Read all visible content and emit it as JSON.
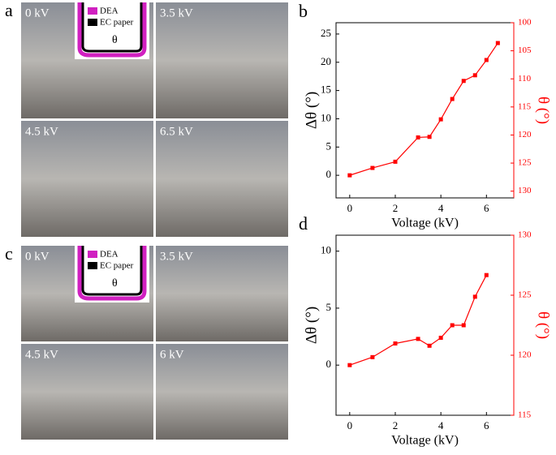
{
  "figure": {
    "panels": [
      {
        "label": "a",
        "photos": [
          "0 kV",
          "3.5 kV",
          "4.5 kV",
          "6.5 kV"
        ],
        "legend": [
          "DEA",
          "EC paper"
        ],
        "angle": "θ"
      },
      {
        "label": "c",
        "photos": [
          "0 kV",
          "3.5 kV",
          "4.5 kV",
          "6 kV"
        ],
        "legend": [
          "DEA",
          "EC paper"
        ],
        "angle": "θ"
      }
    ]
  },
  "chart_data": [
    {
      "type": "line",
      "panel": "b",
      "x_label": "Voltage (kV)",
      "y_label": "Δθ (°)",
      "y2_label": "θ (°)",
      "x": [
        0,
        1,
        2,
        3,
        3.5,
        4,
        4.5,
        5,
        5.5,
        6,
        6.5
      ],
      "series": [
        {
          "color": "#ff0000",
          "values": [
            0,
            1.3,
            2.4,
            6.7,
            6.8,
            9.9,
            13.5,
            16.7,
            17.7,
            20.4,
            23.4
          ]
        }
      ],
      "xlim": [
        -0.6,
        7.2
      ],
      "xticks": [
        0,
        2,
        4,
        6
      ],
      "ylim": [
        -4,
        27
      ],
      "yticks": [
        0,
        5,
        10,
        15,
        20,
        25
      ],
      "y2lim": [
        131.2,
        100
      ],
      "y2ticks": [
        100,
        105,
        110,
        115,
        120,
        125,
        130
      ],
      "y2color": "#ff0000"
    },
    {
      "type": "line",
      "panel": "d",
      "x_label": "Voltage (kV)",
      "y_label": "Δθ (°)",
      "y2_label": "θ (°)",
      "x": [
        0,
        1,
        2,
        3,
        3.5,
        4,
        4.5,
        5,
        5.5,
        6
      ],
      "series": [
        {
          "color": "#ff0000",
          "values": [
            0,
            0.7,
            1.9,
            2.3,
            1.7,
            2.4,
            3.5,
            3.5,
            6.0,
            7.9
          ]
        }
      ],
      "xlim": [
        -0.6,
        7.2
      ],
      "xticks": [
        0,
        2,
        4,
        6
      ],
      "ylim": [
        -4.4,
        11.4
      ],
      "yticks": [
        0,
        5,
        10
      ],
      "y2lim": [
        115,
        130
      ],
      "y2ticks": [
        115,
        120,
        125,
        130
      ],
      "y2color": "#ff0000"
    }
  ]
}
